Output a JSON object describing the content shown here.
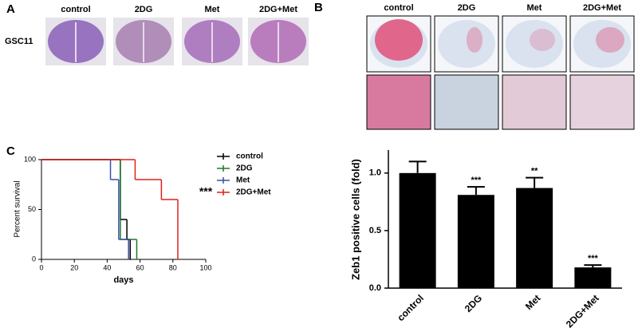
{
  "panel_a": {
    "label": "A",
    "columns": [
      "control",
      "2DG",
      "Met",
      "2DG+Met"
    ],
    "row_label": "GSC11"
  },
  "panel_b": {
    "label": "B",
    "columns": [
      "control",
      "2DG",
      "Met",
      "2DG+Met"
    ]
  },
  "chart_data": [
    {
      "type": "survival",
      "panel_label": "C",
      "ylabel": "Percent survival",
      "xlabel": "days",
      "xlim": [
        0,
        100
      ],
      "ylim": [
        0,
        100
      ],
      "xticks": [
        0,
        20,
        40,
        60,
        80,
        100
      ],
      "yticks": [
        0,
        50,
        100
      ],
      "annotation": "***",
      "series": [
        {
          "name": "control",
          "color": "#000000",
          "x": [
            0,
            48,
            52,
            54
          ],
          "values": [
            100,
            40,
            20,
            0
          ]
        },
        {
          "name": "2DG",
          "color": "#1a7a2a",
          "x": [
            0,
            48,
            58
          ],
          "values": [
            100,
            20,
            0
          ]
        },
        {
          "name": "Met",
          "color": "#3a4fa8",
          "x": [
            0,
            42,
            47,
            53
          ],
          "values": [
            100,
            80,
            20,
            0
          ]
        },
        {
          "name": "2DG+Met",
          "color": "#e0201b",
          "x": [
            0,
            57,
            73,
            83
          ],
          "values": [
            100,
            80,
            60,
            0
          ]
        }
      ]
    },
    {
      "type": "bar",
      "ylabel": "Zeb1 positive cells (fold)",
      "categories": [
        "control",
        "2DG",
        "Met",
        "2DG+Met"
      ],
      "values": [
        1.0,
        0.81,
        0.87,
        0.18
      ],
      "errors": [
        0.1,
        0.07,
        0.09,
        0.02
      ],
      "annotations": [
        null,
        "***",
        "**",
        "***"
      ],
      "color": "#000000",
      "ylim": [
        0,
        1.2
      ],
      "yticks": [
        {
          "value": 0,
          "label": "0.0"
        },
        0.5,
        {
          "value": 1,
          "label": "1.0"
        }
      ]
    }
  ]
}
